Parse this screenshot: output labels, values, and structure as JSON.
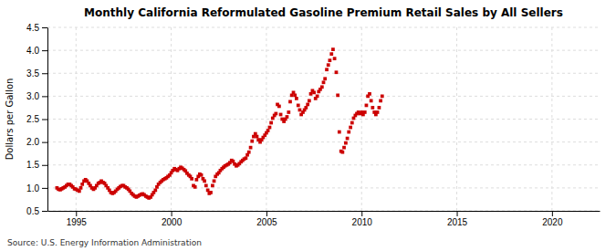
{
  "chart_data": {
    "type": "scatter",
    "title": "Monthly California Reformulated Gasoline Premium Retail Sales by All Sellers",
    "ylabel": "Dollars per Gallon",
    "annotation": "Source: U.S. Energy Information Administration",
    "color": "#cc0000",
    "marker": "square",
    "grid": true,
    "xlim": [
      1993.5,
      2022.5
    ],
    "ylim": [
      0.5,
      4.5
    ],
    "xticks": [
      1995,
      2000,
      2005,
      2010,
      2015,
      2020
    ],
    "yticks": [
      0.5,
      {
        "value": 1.0,
        "label": "1.0"
      },
      1.5,
      {
        "value": 2.0,
        "label": "2.0"
      },
      2.5,
      {
        "value": 3.0,
        "label": "3.0"
      },
      3.5,
      {
        "value": 4.0,
        "label": "4.0"
      },
      4.5
    ],
    "x": [
      1994.0,
      1994.08,
      1994.17,
      1994.25,
      1994.33,
      1994.42,
      1994.5,
      1994.58,
      1994.67,
      1994.75,
      1994.83,
      1994.92,
      1995.0,
      1995.08,
      1995.17,
      1995.25,
      1995.33,
      1995.42,
      1995.5,
      1995.58,
      1995.67,
      1995.75,
      1995.83,
      1995.92,
      1996.0,
      1996.08,
      1996.17,
      1996.25,
      1996.33,
      1996.42,
      1996.5,
      1996.58,
      1996.67,
      1996.75,
      1996.83,
      1996.92,
      1997.0,
      1997.08,
      1997.17,
      1997.25,
      1997.33,
      1997.42,
      1997.5,
      1997.58,
      1997.67,
      1997.75,
      1997.83,
      1997.92,
      1998.0,
      1998.08,
      1998.17,
      1998.25,
      1998.33,
      1998.42,
      1998.5,
      1998.58,
      1998.67,
      1998.75,
      1998.83,
      1998.92,
      1999.0,
      1999.08,
      1999.17,
      1999.25,
      1999.33,
      1999.42,
      1999.5,
      1999.58,
      1999.67,
      1999.75,
      1999.83,
      1999.92,
      2000.0,
      2000.08,
      2000.17,
      2000.25,
      2000.33,
      2000.42,
      2000.5,
      2000.58,
      2000.67,
      2000.75,
      2000.83,
      2000.92,
      2001.0,
      2001.08,
      2001.17,
      2001.25,
      2001.33,
      2001.42,
      2001.5,
      2001.58,
      2001.67,
      2001.75,
      2001.83,
      2001.92,
      2002.0,
      2002.08,
      2002.17,
      2002.25,
      2002.33,
      2002.42,
      2002.5,
      2002.58,
      2002.67,
      2002.75,
      2002.83,
      2002.92,
      2003.0,
      2003.08,
      2003.17,
      2003.25,
      2003.33,
      2003.42,
      2003.5,
      2003.58,
      2003.67,
      2003.75,
      2003.83,
      2003.92,
      2004.0,
      2004.08,
      2004.17,
      2004.25,
      2004.33,
      2004.42,
      2004.5,
      2004.58,
      2004.67,
      2004.75,
      2004.83,
      2004.92,
      2005.0,
      2005.08,
      2005.17,
      2005.25,
      2005.33,
      2005.42,
      2005.5,
      2005.58,
      2005.67,
      2005.75,
      2005.83,
      2005.92,
      2006.0,
      2006.08,
      2006.17,
      2006.25,
      2006.33,
      2006.42,
      2006.5,
      2006.58,
      2006.67,
      2006.75,
      2006.83,
      2006.92,
      2007.0,
      2007.08,
      2007.17,
      2007.25,
      2007.33,
      2007.42,
      2007.5,
      2007.58,
      2007.67,
      2007.75,
      2007.83,
      2007.92,
      2008.0,
      2008.08,
      2008.17,
      2008.25,
      2008.33,
      2008.42,
      2008.5,
      2008.58,
      2008.67,
      2008.75,
      2008.83,
      2008.92,
      2009.0,
      2009.08,
      2009.17,
      2009.25,
      2009.33,
      2009.42,
      2009.5,
      2009.58,
      2009.67,
      2009.75,
      2009.83,
      2009.92,
      2010.0,
      2010.08,
      2010.17,
      2010.25,
      2010.33,
      2010.42,
      2010.5,
      2010.58,
      2010.67,
      2010.75,
      2010.83,
      2010.92,
      2011.0,
      2011.08
    ],
    "values": [
      1.0,
      0.97,
      0.96,
      0.98,
      1.0,
      1.02,
      1.05,
      1.08,
      1.08,
      1.05,
      1.02,
      0.98,
      0.97,
      0.95,
      0.93,
      1.0,
      1.08,
      1.15,
      1.18,
      1.15,
      1.1,
      1.05,
      1.0,
      0.97,
      1.0,
      1.05,
      1.1,
      1.12,
      1.15,
      1.12,
      1.1,
      1.05,
      1.0,
      0.95,
      0.9,
      0.88,
      0.9,
      0.93,
      0.97,
      1.0,
      1.03,
      1.05,
      1.05,
      1.02,
      1.0,
      0.97,
      0.93,
      0.88,
      0.85,
      0.82,
      0.8,
      0.82,
      0.84,
      0.86,
      0.87,
      0.85,
      0.82,
      0.8,
      0.78,
      0.8,
      0.85,
      0.9,
      0.95,
      1.02,
      1.08,
      1.12,
      1.15,
      1.18,
      1.2,
      1.22,
      1.25,
      1.28,
      1.33,
      1.38,
      1.42,
      1.4,
      1.38,
      1.42,
      1.45,
      1.43,
      1.4,
      1.37,
      1.32,
      1.28,
      1.25,
      1.2,
      1.05,
      1.02,
      1.18,
      1.25,
      1.3,
      1.28,
      1.2,
      1.15,
      1.05,
      0.95,
      0.88,
      0.9,
      1.05,
      1.15,
      1.25,
      1.3,
      1.33,
      1.38,
      1.42,
      1.45,
      1.48,
      1.5,
      1.52,
      1.55,
      1.6,
      1.58,
      1.52,
      1.48,
      1.5,
      1.53,
      1.57,
      1.6,
      1.63,
      1.65,
      1.72,
      1.78,
      1.88,
      2.02,
      2.12,
      2.18,
      2.12,
      2.05,
      2.0,
      2.05,
      2.1,
      2.15,
      2.2,
      2.25,
      2.32,
      2.42,
      2.52,
      2.58,
      2.62,
      2.82,
      2.78,
      2.6,
      2.5,
      2.45,
      2.5,
      2.55,
      2.65,
      2.88,
      3.02,
      3.08,
      3.02,
      2.95,
      2.8,
      2.7,
      2.6,
      2.65,
      2.7,
      2.75,
      2.82,
      2.9,
      3.05,
      3.12,
      3.08,
      2.95,
      3.0,
      3.1,
      3.15,
      3.2,
      3.3,
      3.38,
      3.58,
      3.68,
      3.78,
      3.92,
      4.02,
      3.82,
      3.52,
      3.02,
      2.22,
      1.8,
      1.78,
      1.88,
      1.98,
      2.08,
      2.22,
      2.32,
      2.42,
      2.52,
      2.58,
      2.62,
      2.65,
      2.62,
      2.65,
      2.6,
      2.65,
      2.8,
      3.0,
      3.05,
      2.9,
      2.75,
      2.65,
      2.6,
      2.65,
      2.75,
      2.9,
      3.0
    ]
  }
}
